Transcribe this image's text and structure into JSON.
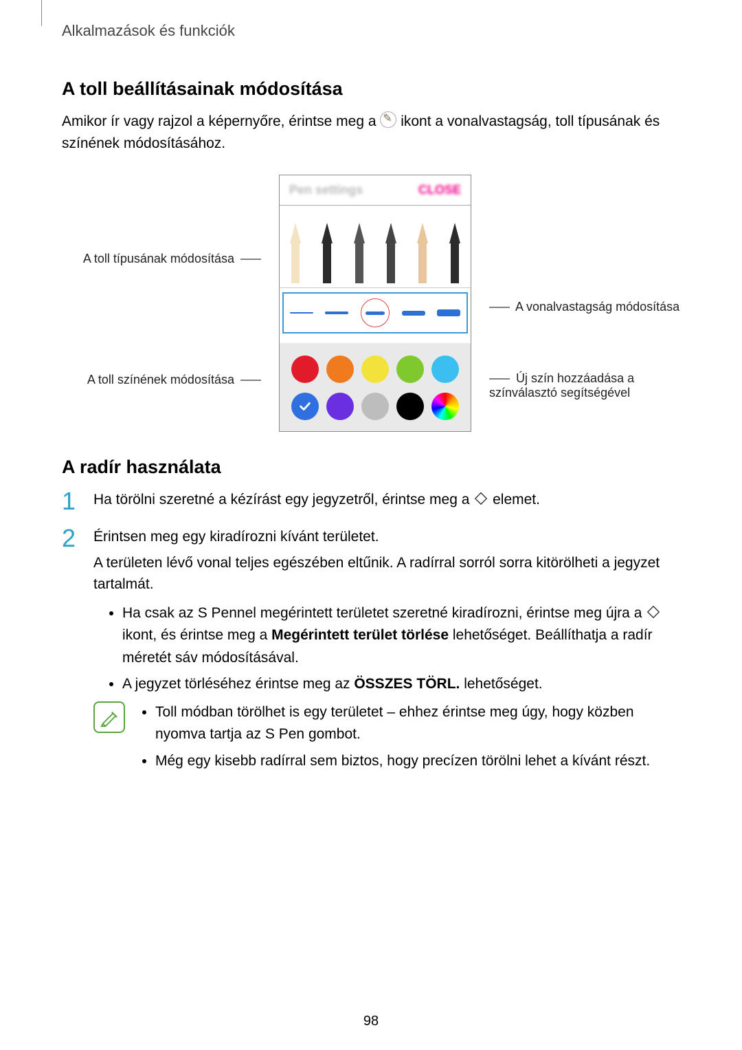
{
  "breadcrumb": "Alkalmazások és funkciók",
  "section1": {
    "heading": "A toll beállításainak módosítása",
    "para_pre": "Amikor ír vagy rajzol a képernyőre, érintse meg a ",
    "para_post": " ikont a vonalvastagság, toll típusának és színének módosításához."
  },
  "figure": {
    "header_left": "Pen settings",
    "header_right": "CLOSE",
    "label_pen_type": "A toll típusának módosítása",
    "label_pen_color": "A toll színének módosítása",
    "label_line_width": "A vonalvastagság módosítása",
    "label_add_color": "Új szín hozzáadása a színválasztó segítségével",
    "pen_tips": [
      {
        "tip": "#f3e3c2",
        "body": "#f3e3c2"
      },
      {
        "tip": "#2b2b2b",
        "body": "#2b2b2b"
      },
      {
        "tip": "#555",
        "body": "#555"
      },
      {
        "tip": "#444",
        "body": "#444"
      },
      {
        "tip": "#e8c69b",
        "body": "#e8c69b"
      },
      {
        "tip": "#2b2b2b",
        "body": "#2b2b2b"
      }
    ],
    "stroke_heights": [
      2,
      4,
      5,
      7,
      10
    ],
    "stroke_color": "#2e6fd6",
    "selected_stroke_index": 2,
    "ring_color": "#d44",
    "selection_border_color": "#3a9ad9",
    "color_block_bg": "#e9e9e9",
    "swatches_row1": [
      "#e21b2b",
      "#f07b1f",
      "#f4e23c",
      "#7fc92e",
      "#3abff0"
    ],
    "swatches_row2": [
      {
        "color": "#2f6fe0",
        "checked": true
      },
      {
        "color": "#6a2fe0"
      },
      {
        "color": "#bdbdbd"
      },
      {
        "color": "#000000"
      },
      {
        "rainbow": true
      }
    ]
  },
  "section2": {
    "heading": "A radír használata",
    "steps": [
      {
        "pre": "Ha törölni szeretné a kézírást egy jegyzetről, érintse meg a ",
        "post": " elemet."
      },
      {
        "line1": "Érintsen meg egy kiradírozni kívánt területet.",
        "line2": "A területen lévő vonal teljes egészében eltűnik. A radírral sorról sorra kitörölheti a jegyzet tartalmát.",
        "bullets": [
          {
            "pre": "Ha csak az S Pennel megérintett területet szeretné kiradírozni, érintse meg újra a ",
            "post": " ikont, és érintse meg a ",
            "bold": "Megérintett terület törlése",
            "tail": " lehetőséget. Beállíthatja a radír méretét sáv módosításával."
          },
          {
            "pre": "A jegyzet törléséhez érintse meg az ",
            "bold": "ÖSSZES TÖRL.",
            "tail": " lehetőséget."
          }
        ],
        "notes": [
          "Toll módban törölhet is egy területet – ehhez érintse meg úgy, hogy közben nyomva tartja az S Pen gombot.",
          "Még egy kisebb radírral sem biztos, hogy precízen törölni lehet a kívánt részt."
        ]
      }
    ]
  },
  "page_number": "98",
  "colors": {
    "accent_num": "#2aa3c7",
    "note_green": "#58a43e"
  }
}
